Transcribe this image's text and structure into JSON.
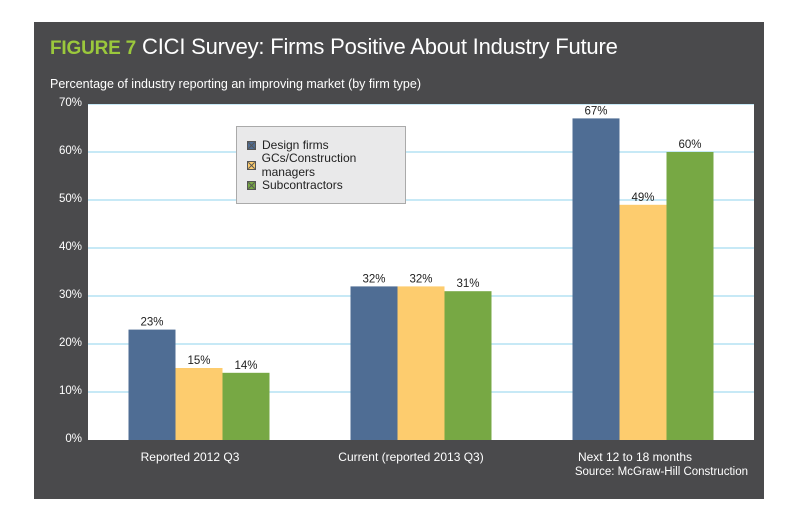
{
  "figure_label": "FIGURE 7",
  "title": "CICI Survey: Firms Positive About Industry Future",
  "subtitle": "Percentage of industry reporting an improving market (by firm type)",
  "source": "Source: McGraw-Hill Construction",
  "colors": {
    "background": "#4a4a4c",
    "accent": "#9bc83c",
    "design": "#4f6d94",
    "gc": "#fdcc6e",
    "sub": "#77a844",
    "grid": "#8fd3ec"
  },
  "chart_data": {
    "type": "bar",
    "title": "CICI Survey: Firms Positive About Industry Future",
    "ylabel": "Percentage of industry reporting an improving market (by firm type)",
    "xlabel": "",
    "categories": [
      "Reported 2012 Q3",
      "Current (reported 2013 Q3)",
      "Next 12 to 18 months"
    ],
    "series": [
      {
        "name": "Design firms",
        "values": [
          23,
          32,
          67
        ],
        "labels": [
          "23%",
          "32%",
          "67%"
        ]
      },
      {
        "name": "GCs/Construction managers",
        "values": [
          15,
          32,
          49
        ],
        "labels": [
          "15%",
          "32%",
          "49%"
        ]
      },
      {
        "name": "Subcontractors",
        "values": [
          14,
          31,
          60
        ],
        "labels": [
          "14%",
          "31%",
          "60%"
        ]
      }
    ],
    "ylim": [
      0,
      70
    ],
    "yticks": [
      0,
      10,
      20,
      30,
      40,
      50,
      60,
      70
    ],
    "ytick_labels": [
      "0%",
      "10%",
      "20%",
      "30%",
      "40%",
      "50%",
      "60%",
      "70%"
    ],
    "grid": true,
    "legend_position": "top-left"
  }
}
